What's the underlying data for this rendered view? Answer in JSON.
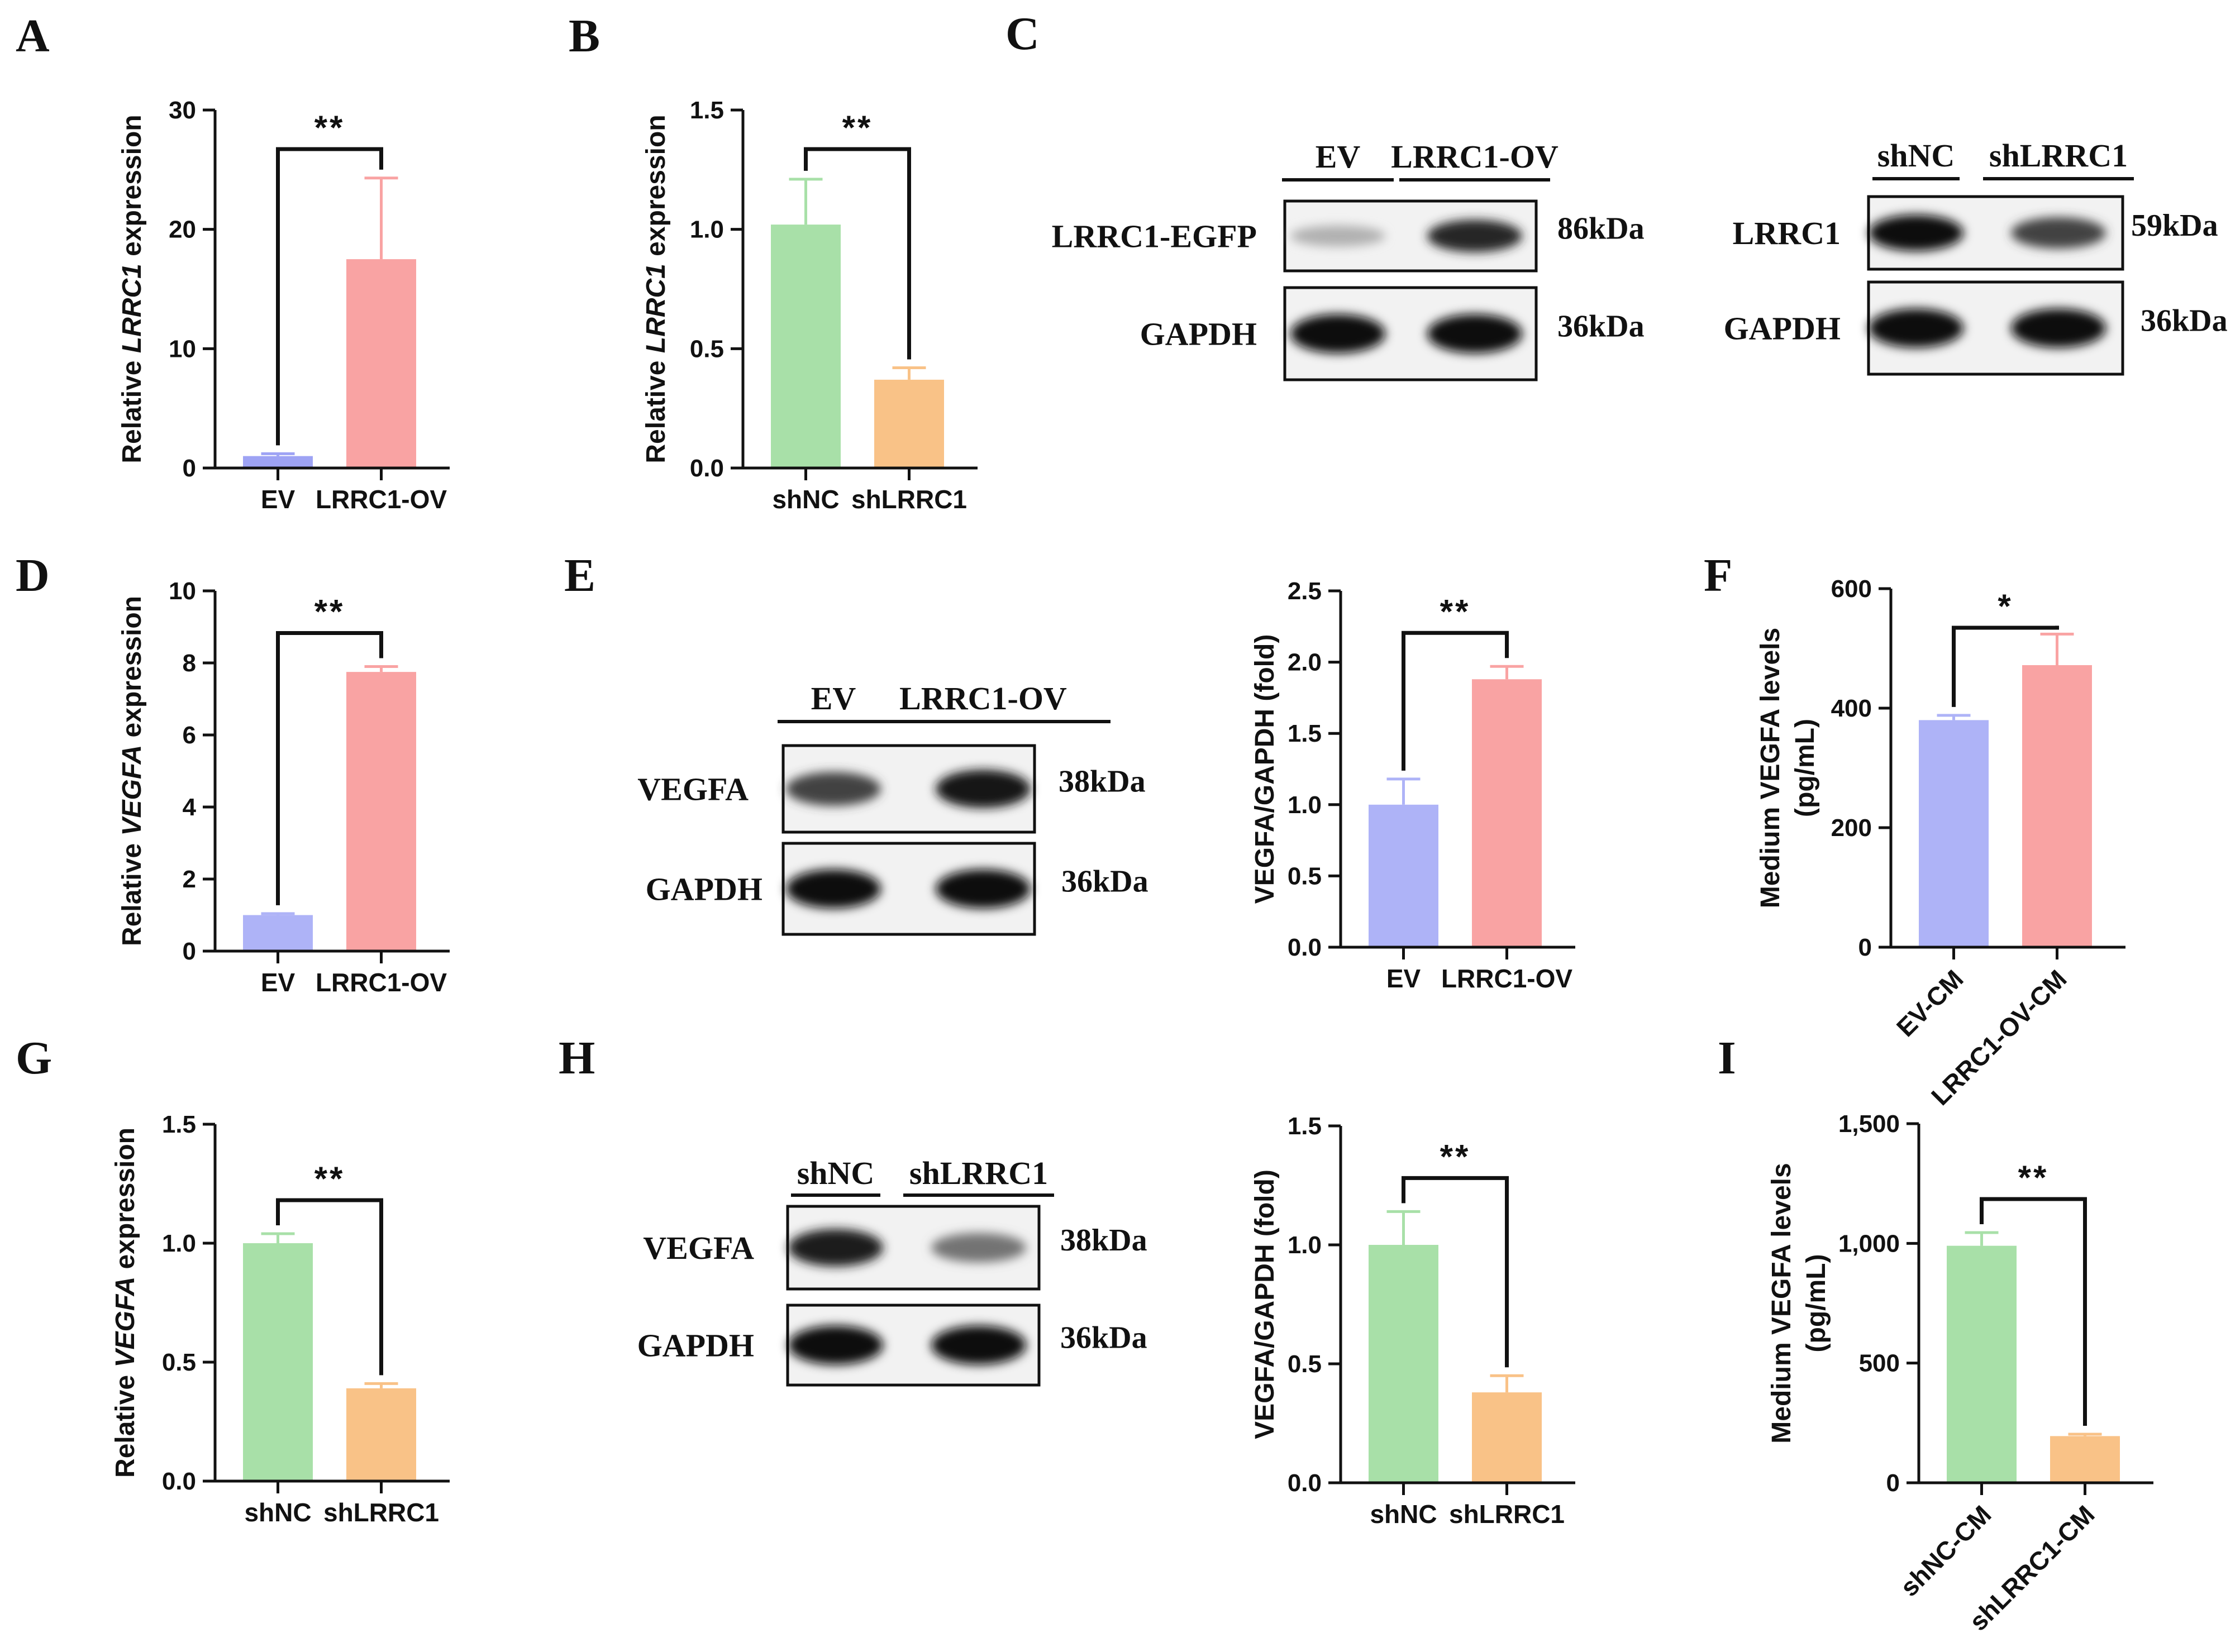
{
  "panel_letters": [
    "A",
    "B",
    "C",
    "D",
    "E",
    "F",
    "G",
    "H",
    "I"
  ],
  "colors": {
    "ev": "#aeb3f7",
    "ev_strong": "#9ea3f4",
    "ov": "#f9a3a3",
    "shnc": "#a8e0a8",
    "shlrrc1": "#f9c287",
    "axis": "#111111"
  },
  "chart_data": [
    {
      "id": "A",
      "type": "bar",
      "categories": [
        "EV",
        "LRRC1-OV"
      ],
      "values": [
        1.0,
        17.5
      ],
      "errors": [
        0.2,
        6.8
      ],
      "colors": [
        "#9ea3f4",
        "#f9a3a3"
      ],
      "ylim": [
        0,
        30
      ],
      "yticks": [
        0,
        10,
        20,
        30
      ],
      "ytick_labels": [
        "0",
        "10",
        "20",
        "30"
      ],
      "ylabel_pre": "Relative ",
      "ylabel_it": "LRRC1",
      "ylabel_post": " expression",
      "significance": "**",
      "rotate_cats": false
    },
    {
      "id": "B",
      "type": "bar",
      "categories": [
        "shNC",
        "shLRRC1"
      ],
      "values": [
        1.02,
        0.37
      ],
      "errors": [
        0.19,
        0.05
      ],
      "colors": [
        "#a8e0a8",
        "#f9c287"
      ],
      "ylim": [
        0,
        1.5
      ],
      "yticks": [
        0,
        0.5,
        1.0,
        1.5
      ],
      "ytick_labels": [
        "0.0",
        "0.5",
        "1.0",
        "1.5"
      ],
      "ylabel_pre": "Relative ",
      "ylabel_it": "LRRC1",
      "ylabel_post": " expression",
      "significance": "**",
      "rotate_cats": false
    },
    {
      "id": "D",
      "type": "bar",
      "categories": [
        "EV",
        "LRRC1-OV"
      ],
      "values": [
        1.0,
        7.75
      ],
      "errors": [
        0.04,
        0.15
      ],
      "colors": [
        "#aeb3f7",
        "#f9a3a3"
      ],
      "ylim": [
        0,
        10
      ],
      "yticks": [
        0,
        2,
        4,
        6,
        8,
        10
      ],
      "ytick_labels": [
        "0",
        "2",
        "4",
        "6",
        "8",
        "10"
      ],
      "ylabel_pre": "Relative ",
      "ylabel_it": "VEGFA",
      "ylabel_post": " expression",
      "significance": "**",
      "rotate_cats": false
    },
    {
      "id": "E",
      "type": "bar",
      "categories": [
        "EV",
        "LRRC1-OV"
      ],
      "values": [
        1.0,
        1.88
      ],
      "errors": [
        0.18,
        0.09
      ],
      "colors": [
        "#aeb3f7",
        "#f9a3a3"
      ],
      "ylim": [
        0,
        2.5
      ],
      "yticks": [
        0,
        0.5,
        1.0,
        1.5,
        2.0,
        2.5
      ],
      "ytick_labels": [
        "0.0",
        "0.5",
        "1.0",
        "1.5",
        "2.0",
        "2.5"
      ],
      "ylabel_pre": "VEGFA/GAPDH (fold)",
      "ylabel_it": "",
      "ylabel_post": "",
      "significance": "**",
      "rotate_cats": false
    },
    {
      "id": "F",
      "type": "bar",
      "categories": [
        "EV-CM",
        "LRRC1-OV-CM"
      ],
      "values": [
        380,
        472
      ],
      "errors": [
        8,
        52
      ],
      "colors": [
        "#aeb3f7",
        "#f9a3a3"
      ],
      "ylim": [
        0,
        600
      ],
      "yticks": [
        0,
        200,
        400,
        600
      ],
      "ytick_labels": [
        "0",
        "200",
        "400",
        "600"
      ],
      "ylabel_pre": "Medium VEGFA levels",
      "ylabel_line2": "(pg/mL)",
      "ylabel_it": "",
      "ylabel_post": "",
      "significance": "*",
      "rotate_cats": true
    },
    {
      "id": "G",
      "type": "bar",
      "categories": [
        "shNC",
        "shLRRC1"
      ],
      "values": [
        1.0,
        0.39
      ],
      "errors": [
        0.04,
        0.02
      ],
      "colors": [
        "#a8e0a8",
        "#f9c287"
      ],
      "ylim": [
        0,
        1.5
      ],
      "yticks": [
        0,
        0.5,
        1.0,
        1.5
      ],
      "ytick_labels": [
        "0.0",
        "0.5",
        "1.0",
        "1.5"
      ],
      "ylabel_pre": "Relative ",
      "ylabel_it": "VEGFA",
      "ylabel_post": " expression",
      "significance": "**",
      "rotate_cats": false
    },
    {
      "id": "H",
      "type": "bar",
      "categories": [
        "shNC",
        "shLRRC1"
      ],
      "values": [
        1.0,
        0.38
      ],
      "errors": [
        0.14,
        0.07
      ],
      "colors": [
        "#a8e0a8",
        "#f9c287"
      ],
      "ylim": [
        0,
        1.5
      ],
      "yticks": [
        0,
        0.5,
        1.0,
        1.5
      ],
      "ytick_labels": [
        "0.0",
        "0.5",
        "1.0",
        "1.5"
      ],
      "ylabel_pre": "VEGFA/GAPDH (fold)",
      "ylabel_it": "",
      "ylabel_post": "",
      "significance": "**",
      "rotate_cats": false
    },
    {
      "id": "I",
      "type": "bar",
      "categories": [
        "shNC-CM",
        "shLRRC1-CM"
      ],
      "values": [
        990,
        195
      ],
      "errors": [
        55,
        8
      ],
      "colors": [
        "#a8e0a8",
        "#f9c287"
      ],
      "ylim": [
        0,
        1500
      ],
      "yticks": [
        0,
        500,
        1000,
        1500
      ],
      "ytick_labels": [
        "0",
        "500",
        "1,000",
        "1,500"
      ],
      "ylabel_pre": "Medium VEGFA levels",
      "ylabel_line2": "(pg/mL)",
      "ylabel_it": "",
      "ylabel_post": "",
      "significance": "**",
      "rotate_cats": true
    }
  ],
  "blots": [
    {
      "id": "C-left",
      "lanes": [
        "EV",
        "LRRC1-OV"
      ],
      "rows": [
        {
          "protein": "LRRC1-EGFP",
          "kda": "86kDa",
          "bands": [
            0.12,
            0.85
          ]
        },
        {
          "protein": "GAPDH",
          "kda": "36kDa",
          "bands": [
            1.0,
            1.0
          ]
        }
      ]
    },
    {
      "id": "C-right",
      "lanes": [
        "shNC",
        "shLRRC1"
      ],
      "rows": [
        {
          "protein": "LRRC1",
          "kda": "59kDa",
          "bands": [
            1.0,
            0.7
          ]
        },
        {
          "protein": "GAPDH",
          "kda": "36kDa",
          "bands": [
            1.0,
            1.0
          ]
        }
      ]
    },
    {
      "id": "E-blot",
      "lanes": [
        "EV",
        "LRRC1-OV"
      ],
      "rows": [
        {
          "protein": "VEGFA",
          "kda": "38kDa",
          "bands": [
            0.7,
            0.95
          ]
        },
        {
          "protein": "GAPDH",
          "kda": "36kDa",
          "bands": [
            1.0,
            1.0
          ]
        }
      ]
    },
    {
      "id": "H-blot",
      "lanes": [
        "shNC",
        "shLRRC1"
      ],
      "rows": [
        {
          "protein": "VEGFA",
          "kda": "38kDa",
          "bands": [
            0.9,
            0.45
          ]
        },
        {
          "protein": "GAPDH",
          "kda": "36kDa",
          "bands": [
            1.0,
            1.0
          ]
        }
      ]
    }
  ]
}
